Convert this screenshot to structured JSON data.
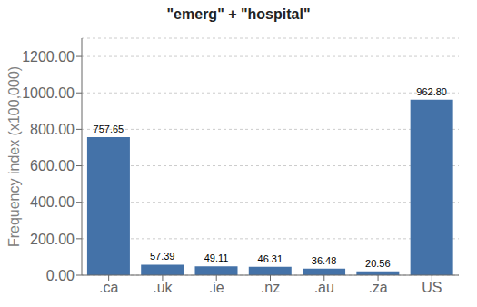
{
  "chart_data": {
    "type": "bar",
    "title": "\"emerg\" + \"hospital\"",
    "categories": [
      ".ca",
      ".uk",
      ".ie",
      ".nz",
      ".au",
      ".za",
      "US"
    ],
    "values": [
      757.65,
      57.39,
      49.11,
      46.31,
      36.48,
      20.56,
      962.8
    ],
    "value_labels": [
      "757.65",
      "57.39",
      "49.11",
      "46.31",
      "36.48",
      "20.56",
      "962.80"
    ],
    "data_labels": true,
    "color": "#4472a8",
    "ylabel": "Frequency index (x100,000)",
    "ylim": [
      0,
      1300
    ],
    "yticks": [
      {
        "value": 0,
        "label": "0.00"
      },
      {
        "value": 200,
        "label": "200.00"
      },
      {
        "value": 400,
        "label": "400.00"
      },
      {
        "value": 600,
        "label": "600.00"
      },
      {
        "value": 800,
        "label": "800.00"
      },
      {
        "value": 1000,
        "label": "1000.00"
      },
      {
        "value": 1200,
        "label": "1200.00"
      }
    ],
    "grid": true
  }
}
